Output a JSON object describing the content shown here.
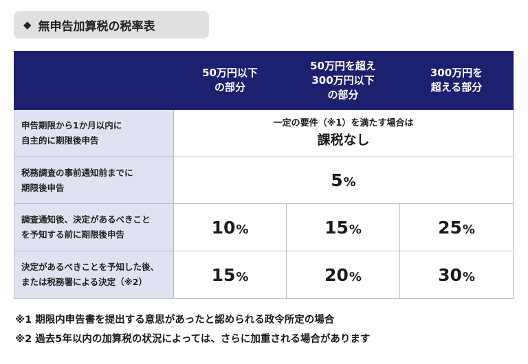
{
  "title": {
    "icon": "diamond-icon",
    "text": "無申告加算税の税率表"
  },
  "table": {
    "columns": [
      [
        "50万円以下",
        "の部分"
      ],
      [
        "50万円を超え",
        "300万円以下",
        "の部分"
      ],
      [
        "300万円を",
        "超える部分"
      ]
    ],
    "rows": [
      {
        "label": [
          "申告期限から1か月以内に",
          "自主的に期限後申告"
        ],
        "merged": true,
        "note_small": "一定の要件（※1）を満たす場合は",
        "note_big": "課税なし"
      },
      {
        "label": [
          "税務調査の事前通知前までに",
          "期限後申告"
        ],
        "merged": true,
        "value": "5",
        "unit": "%"
      },
      {
        "label": [
          "調査通知後、決定があるべきこと",
          "を予知する前に期限後申告"
        ],
        "merged": false,
        "values": [
          "10",
          "15",
          "25"
        ],
        "unit": "%"
      },
      {
        "label": [
          "決定があるべきことを予知した後、",
          "または税務署による決定（※2）"
        ],
        "merged": false,
        "values": [
          "15",
          "20",
          "30"
        ],
        "unit": "%"
      }
    ]
  },
  "footnotes": [
    "※1 期限内申告書を提出する意思があったと認められる政令所定の場合",
    "※2 過去5年以内の加算税の状況によっては、さらに加重される場合があります"
  ],
  "colors": {
    "header_bg": "#1d1f6f",
    "label_bg": "#dfe3f1",
    "title_bg": "#e0e0e0"
  }
}
